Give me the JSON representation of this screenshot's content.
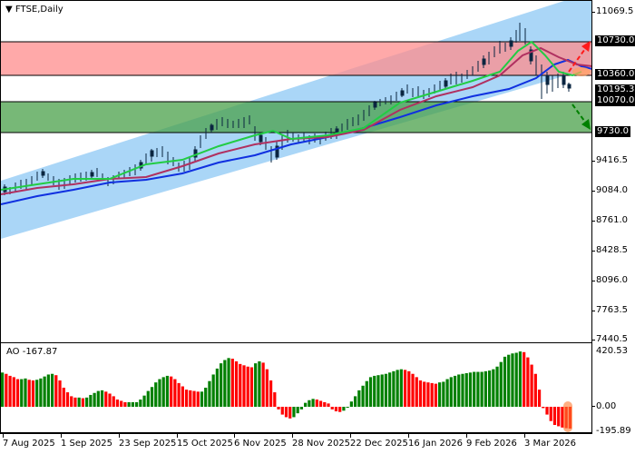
{
  "header": {
    "symbol_timeframe": "FTSE,Daily",
    "dropdown_icon": "triangle-down-icon"
  },
  "price_axis": {
    "labels": [
      "11069.5",
      "9416.5",
      "9084.0",
      "8761.0",
      "8428.5",
      "8096.0",
      "7763.5",
      "7440.5"
    ]
  },
  "price_tags": {
    "resistance_upper": "10730.0",
    "resistance_lower": "10360.0",
    "current_price": "10195.3",
    "support_upper": "10070.0",
    "support_lower": "9730.0"
  },
  "ao": {
    "title": "AO -167.87",
    "axis_labels": [
      "420.53",
      "0.00",
      "-195.89"
    ]
  },
  "time_axis": {
    "labels": [
      "7 Aug 2025",
      "1 Sep 2025",
      "23 Sep 2025",
      "15 Oct 2025",
      "6 Nov 2025",
      "28 Nov 2025",
      "22 Dec 2025",
      "16 Jan 2026",
      "9 Feb 2026",
      "3 Mar 2026"
    ]
  },
  "colors": {
    "resistance_zone": "#ff9a9a",
    "support_zone": "#5aaa5a",
    "channel": "#8ec8f4",
    "ma_fast": "#22cc44",
    "ma_mid": "#b03060",
    "ma_slow": "#1030e0",
    "ao_up": "#008000",
    "ao_down": "#ff0000",
    "bull_arrow": "#ff1a1a",
    "bear_arrow": "#008000",
    "candle": "#0a2540"
  },
  "chart_data": [
    {
      "type": "candlestick",
      "title": "FTSE,Daily",
      "xlabel": "",
      "ylabel": "",
      "ylim": [
        7440.5,
        11069.5
      ],
      "x_ticks": [
        "7 Aug 2025",
        "1 Sep 2025",
        "23 Sep 2025",
        "15 Oct 2025",
        "6 Nov 2025",
        "28 Nov 2025",
        "22 Dec 2025",
        "16 Jan 2026",
        "9 Feb 2026",
        "3 Mar 2026"
      ],
      "y_ticks": [
        11069.5,
        9416.5,
        9084.0,
        8761.0,
        8428.5,
        8096.0,
        7763.5,
        7440.5
      ],
      "approx_close_by_tick": {
        "7 Aug 2025": 9150,
        "1 Sep 2025": 9220,
        "23 Sep 2025": 9280,
        "15 Oct 2025": 9520,
        "6 Nov 2025": 9700,
        "28 Nov 2025": 9720,
        "22 Dec 2025": 9900,
        "16 Jan 2026": 10150,
        "9 Feb 2026": 10400,
        "3 Mar 2026": 10300
      },
      "peak": {
        "approx_date": "late Feb 2026",
        "high": 10950
      },
      "last_price": 10195.3,
      "zones": [
        {
          "name": "resistance",
          "from": 10360.0,
          "to": 10730.0,
          "color": "#ff9a9a"
        },
        {
          "name": "support",
          "from": 9730.0,
          "to": 10070.0,
          "color": "#5aaa5a"
        }
      ],
      "channel": {
        "type": "ascending",
        "color": "#8ec8f4"
      },
      "moving_averages": [
        {
          "name": "fast MA",
          "color": "#22cc44"
        },
        {
          "name": "mid MA",
          "color": "#b03060"
        },
        {
          "name": "slow MA",
          "color": "#1030e0"
        }
      ],
      "annotations": [
        {
          "type": "arrow",
          "direction": "up",
          "color": "#ff1a1a",
          "target": 10730.0
        },
        {
          "type": "arrow",
          "direction": "down",
          "color": "#008000",
          "target": 9730.0
        }
      ]
    },
    {
      "type": "bar",
      "title": "AO -167.87",
      "ylim": [
        -195.89,
        420.53
      ],
      "y_ticks": [
        420.53,
        0.0,
        -195.89
      ],
      "current_value": -167.87,
      "series": [
        {
          "name": "AO",
          "values": [
            260,
            250,
            235,
            225,
            210,
            210,
            215,
            205,
            200,
            205,
            215,
            230,
            245,
            250,
            240,
            200,
            145,
            110,
            80,
            70,
            70,
            65,
            70,
            90,
            105,
            120,
            125,
            115,
            100,
            80,
            55,
            45,
            35,
            35,
            35,
            35,
            55,
            85,
            120,
            150,
            185,
            210,
            225,
            235,
            230,
            210,
            180,
            155,
            130,
            125,
            120,
            115,
            115,
            145,
            195,
            245,
            290,
            330,
            355,
            370,
            365,
            345,
            325,
            315,
            305,
            300,
            330,
            345,
            335,
            285,
            200,
            110,
            -20,
            -60,
            -80,
            -90,
            -80,
            -50,
            -20,
            30,
            50,
            60,
            55,
            45,
            35,
            25,
            -20,
            -35,
            -40,
            -30,
            0,
            40,
            80,
            125,
            160,
            195,
            225,
            235,
            240,
            245,
            250,
            260,
            270,
            280,
            285,
            280,
            270,
            250,
            225,
            200,
            190,
            185,
            180,
            175,
            185,
            190,
            210,
            225,
            235,
            245,
            250,
            255,
            260,
            265,
            265,
            265,
            270,
            275,
            285,
            305,
            340,
            380,
            395,
            405,
            410,
            420,
            415,
            375,
            320,
            250,
            130,
            -10,
            -60,
            -110,
            -140,
            -150,
            -160,
            -165,
            -168
          ]
        }
      ]
    }
  ]
}
